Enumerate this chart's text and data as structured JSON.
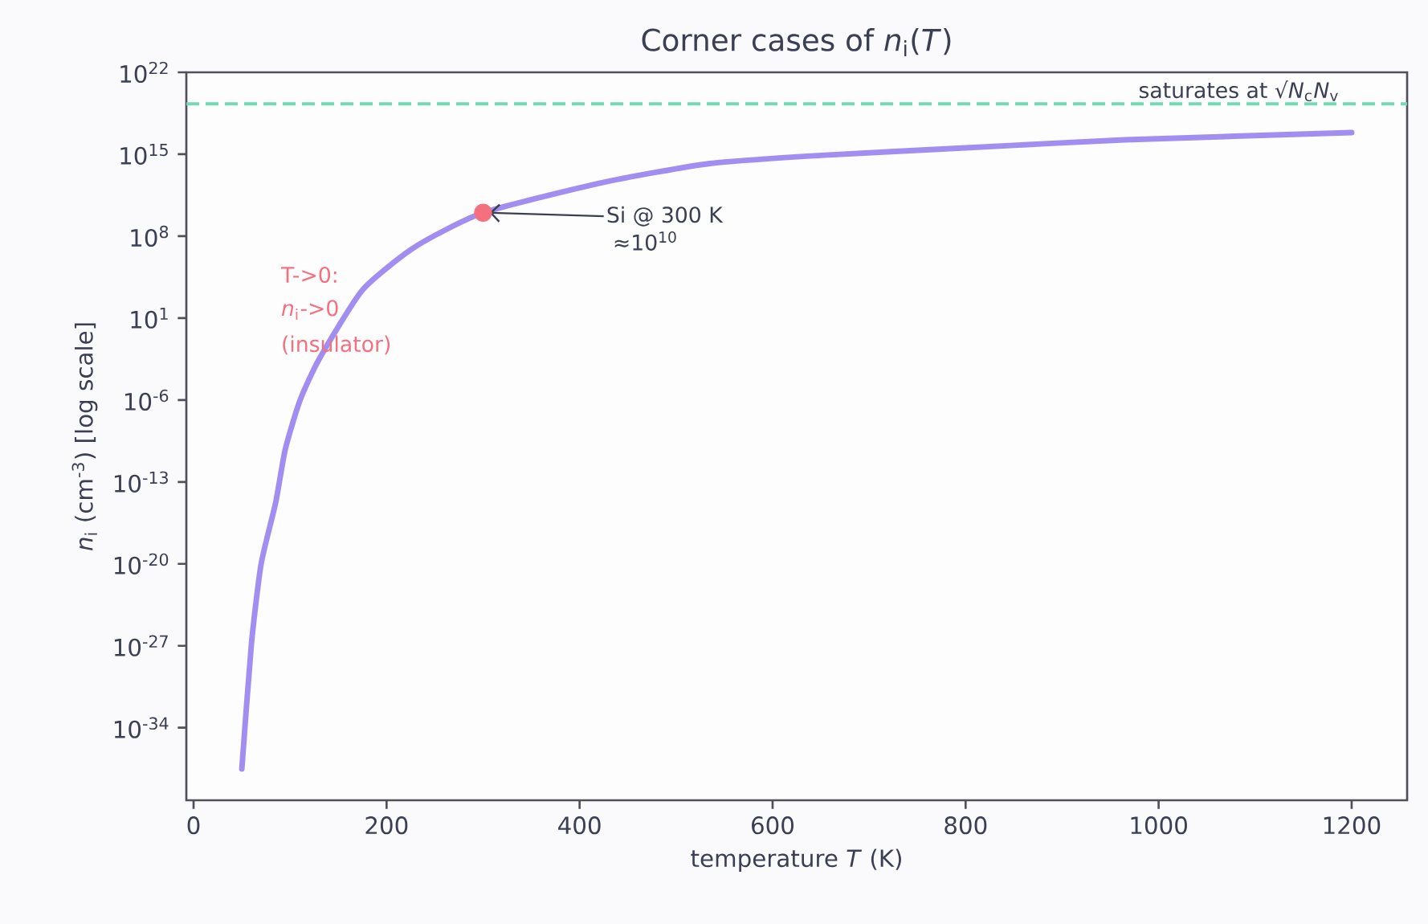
{
  "chart_data": {
    "type": "line",
    "title": "Corner cases of  *n*$_{i}$(*T*)",
    "xlabel": "temperature  *T*  (K)",
    "ylabel": "*n*$_{i}$  (cm$^{-3}$)  [log scale]",
    "log": "y",
    "xlim": [
      -7.5,
      1257.5
    ],
    "ylim": [
      6.3e-41,
      1e+22
    ],
    "xticks": [
      0,
      200,
      400,
      600,
      800,
      1000,
      1200
    ],
    "yticks": [
      {
        "value": 1e-34,
        "label": "10$^{-34}$"
      },
      {
        "value": 1e-27,
        "label": "10$^{-27}$"
      },
      {
        "value": 1e-20,
        "label": "10$^{-20}$"
      },
      {
        "value": 1e-13,
        "label": "10$^{-13}$"
      },
      {
        "value": 1e-06,
        "label": "10$^{-6}$"
      },
      {
        "value": 10,
        "label": "10$^{1}$"
      },
      {
        "value": 100000000.0,
        "label": "10$^{8}$"
      },
      {
        "value": 1000000000000000.0,
        "label": "10$^{15}$"
      },
      {
        "value": 1e+22,
        "label": "10$^{22}$"
      }
    ],
    "series": [
      {
        "type": "line",
        "color": "#a28ef0",
        "x": [
          50,
          60,
          70,
          85,
          95,
          110,
          130,
          175,
          230,
          300,
          425,
          535,
          650,
          800,
          965,
          1200
        ],
        "values": [
          3e-38,
          1.6e-27,
          1e-20,
          1.6e-15,
          6e-11,
          8e-07,
          0.003,
          2500.0,
          13000000.0,
          10000000000.0,
          4000000000000.0,
          160000000000000.0,
          800000000000000.0,
          3500000000000000.0,
          1.7e+16,
          7e+16
        ]
      },
      {
        "type": "scatter",
        "color": "#f4707f",
        "x": [
          300
        ],
        "values": [
          10000000000.0
        ]
      }
    ],
    "ref_lines": [
      {
        "axis": "y",
        "value": 2e+19,
        "label": "saturates at √*N*$_{c}$*N*$_{v}$",
        "color": "#6fdcb4",
        "line_style": "dashed"
      }
    ],
    "annotations": [
      {
        "text": "Si @ 300 K",
        "x": 300,
        "y": 10000000000.0
      },
      "≈10$^{10}$",
      "T->0:",
      "*n*$_{i}$->0",
      "(insulator)"
    ]
  }
}
